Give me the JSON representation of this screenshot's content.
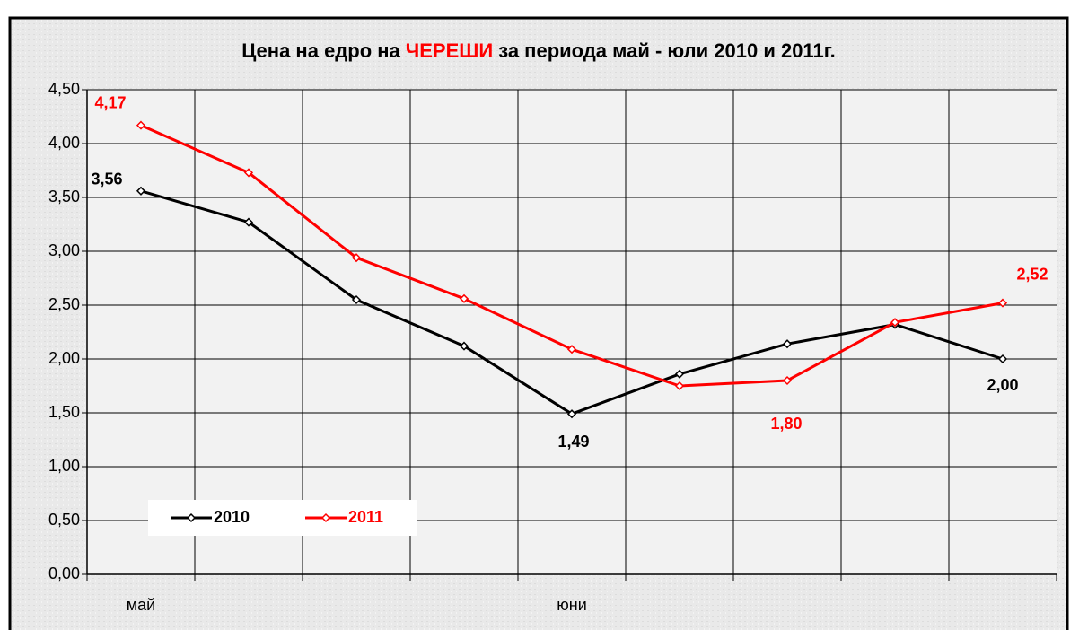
{
  "chart_data": {
    "type": "line",
    "title_parts": [
      "Цена на едро на",
      "ЧЕРЕШИ",
      "за периода май - юли 2010 и 2011г."
    ],
    "title_colors": [
      "#000000",
      "#ff0000",
      "#000000"
    ],
    "categories": [
      "май",
      null,
      null,
      null,
      "юни",
      null,
      null,
      null,
      null
    ],
    "series": [
      {
        "name": "2010",
        "color": "#000000",
        "values": [
          3.56,
          3.27,
          2.55,
          2.12,
          1.49,
          1.86,
          2.14,
          2.32,
          2.0
        ],
        "value_labels": [
          "3,56",
          null,
          null,
          null,
          "1,49",
          null,
          null,
          null,
          "2,00"
        ]
      },
      {
        "name": "2011",
        "color": "#ff0000",
        "values": [
          4.17,
          3.73,
          2.94,
          2.56,
          2.09,
          1.75,
          1.8,
          2.34,
          2.52
        ],
        "value_labels": [
          "4,17",
          null,
          null,
          null,
          null,
          null,
          "1,80",
          null,
          "2,52"
        ]
      }
    ],
    "ylim": [
      0,
      4.5
    ],
    "yticks": [
      {
        "value": 0,
        "label": "0,00"
      },
      {
        "value": 0.5,
        "label": "0,50"
      },
      {
        "value": 1,
        "label": "1,00"
      },
      {
        "value": 1.5,
        "label": "1,50"
      },
      {
        "value": 2,
        "label": "2,00"
      },
      {
        "value": 2.5,
        "label": "2,50"
      },
      {
        "value": 3,
        "label": "3,00"
      },
      {
        "value": 3.5,
        "label": "3,50"
      },
      {
        "value": 4,
        "label": "4,00"
      },
      {
        "value": 4.5,
        "label": "4,50"
      }
    ],
    "grid": true,
    "legend": "lower left"
  }
}
